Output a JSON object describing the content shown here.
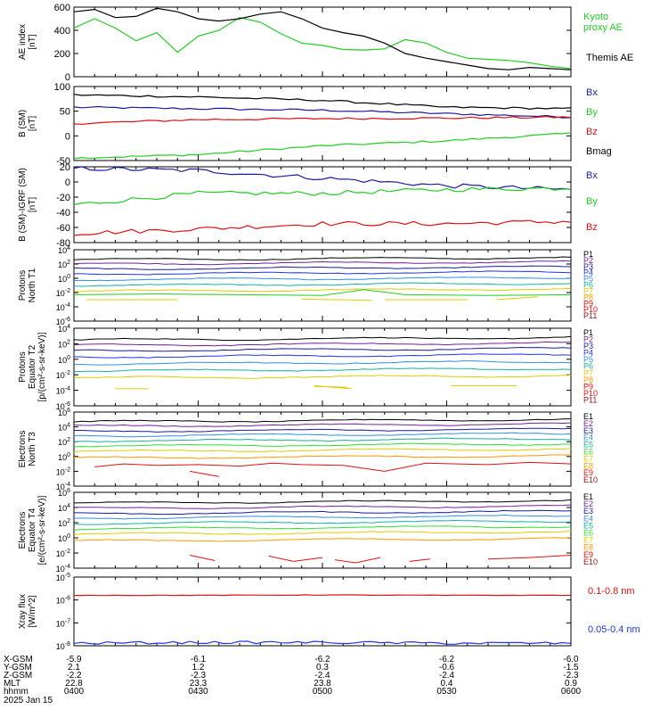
{
  "figure": {
    "footer_date": "2025 Jan 15"
  },
  "colors": {
    "black": "#000000",
    "navy": "#1b1b9c",
    "blue": "#2233ee",
    "cyan": "#22cccc",
    "teal": "#16b0a0",
    "green": "#22cc22",
    "yellow": "#ddcc00",
    "orange": "#ff9900",
    "red": "#dd1111",
    "purple": "#7a1f9a",
    "darkred": "#9c1010",
    "steelblue": "#3090e0",
    "lime": "#33dd33"
  },
  "orbit_table": {
    "row_labels": [
      "X-GSM",
      "Y-GSM",
      "Z-GSM",
      "MLT",
      "hhmm"
    ],
    "columns": [
      {
        "values": [
          "-5.9",
          "2.1",
          "-2.2",
          "22.8",
          "0400"
        ]
      },
      {
        "values": [
          "-6.1",
          "1.2",
          "-2.3",
          "23.3",
          "0430"
        ]
      },
      {
        "values": [
          "-6.2",
          "0.3",
          "-2.4",
          "23.8",
          "0500"
        ]
      },
      {
        "values": [
          "-6.2",
          "-0.6",
          "-2.4",
          "0.4",
          "0530"
        ]
      },
      {
        "values": [
          "-6.0",
          "-1.5",
          "-2.3",
          "0.9",
          "0600"
        ]
      }
    ]
  },
  "chart_data": [
    {
      "type": "line",
      "ylabel": "AE index [nT]",
      "ylim": [
        0,
        600
      ],
      "yticks": [
        "0",
        "200",
        "400",
        "600"
      ],
      "xlim": [
        "0400",
        "0600"
      ],
      "legend_placement": "right",
      "series": [
        {
          "name": "Kyoto proxy AE",
          "color": "green",
          "x": [
            "0400",
            "0405",
            "0410",
            "0415",
            "0420",
            "0425",
            "0430",
            "0435",
            "0440",
            "0445",
            "0450",
            "0455",
            "0500",
            "0505",
            "0510",
            "0515",
            "0520",
            "0525",
            "0530",
            "0535",
            "0540",
            "0545",
            "0550",
            "0555",
            "0600"
          ],
          "y": [
            420,
            500,
            420,
            310,
            380,
            210,
            350,
            400,
            510,
            470,
            370,
            290,
            270,
            235,
            230,
            240,
            320,
            290,
            210,
            160,
            150,
            140,
            120,
            90,
            70
          ]
        },
        {
          "name": "Themis AE",
          "color": "black",
          "x": [
            "0400",
            "0405",
            "0410",
            "0415",
            "0420",
            "0425",
            "0430",
            "0435",
            "0440",
            "0445",
            "0450",
            "0455",
            "0500",
            "0505",
            "0510",
            "0515",
            "0520",
            "0525",
            "0530",
            "0535",
            "0540",
            "0545",
            "0550",
            "0555",
            "0600"
          ],
          "y": [
            560,
            580,
            510,
            520,
            590,
            560,
            500,
            480,
            500,
            540,
            560,
            500,
            420,
            380,
            350,
            290,
            200,
            160,
            130,
            100,
            70,
            60,
            80,
            70,
            60
          ]
        }
      ]
    },
    {
      "type": "line",
      "ylabel": "B (SM) [nT]",
      "ylim": [
        -50,
        100
      ],
      "yticks": [
        "-50",
        "0",
        "50",
        "100"
      ],
      "series": [
        {
          "name": "Bx",
          "color": "navy",
          "x": [
            "0400",
            "0430",
            "0500",
            "0530",
            "0600"
          ],
          "y": [
            58,
            55,
            52,
            45,
            38
          ]
        },
        {
          "name": "By",
          "color": "green",
          "x": [
            "0400",
            "0430",
            "0500",
            "0530",
            "0600"
          ],
          "y": [
            -45,
            -38,
            -20,
            -10,
            5
          ]
        },
        {
          "name": "Bz",
          "color": "red",
          "x": [
            "0400",
            "0430",
            "0500",
            "0530",
            "0600"
          ],
          "y": [
            25,
            33,
            35,
            36,
            38
          ]
        },
        {
          "name": "Bmag",
          "color": "black",
          "x": [
            "0400",
            "0430",
            "0500",
            "0530",
            "0600"
          ],
          "y": [
            83,
            79,
            72,
            58,
            55
          ]
        }
      ]
    },
    {
      "type": "line",
      "ylabel": "B (SM)-IGRF (SM) [nT]",
      "ylim": [
        -80,
        20
      ],
      "yticks": [
        "-80",
        "-60",
        "-40",
        "-20",
        "0",
        "20"
      ],
      "series": [
        {
          "name": "Bx",
          "color": "navy",
          "x": [
            "0400",
            "0430",
            "0500",
            "0530",
            "0600"
          ],
          "y": [
            18,
            15,
            5,
            -5,
            -10
          ]
        },
        {
          "name": "By",
          "color": "green",
          "x": [
            "0400",
            "0430",
            "0500",
            "0530",
            "0600"
          ],
          "y": [
            -30,
            -15,
            -15,
            -10,
            -8
          ]
        },
        {
          "name": "Bz",
          "color": "red",
          "x": [
            "0400",
            "0430",
            "0500",
            "0530",
            "0600"
          ],
          "y": [
            -68,
            -62,
            -55,
            -55,
            -52
          ]
        }
      ]
    },
    {
      "type": "line",
      "ylabel": "Protons North T1",
      "yscale": "log",
      "ylim": [
        1e-06,
        10000.0
      ],
      "yticks": [
        "10-6",
        "10-4",
        "10-2",
        "100",
        "102",
        "104"
      ],
      "legend": [
        "P1",
        "P2",
        "P3",
        "P4",
        "P5",
        "P6",
        "P7",
        "P8",
        "P9",
        "P10",
        "P11"
      ]
    },
    {
      "type": "line",
      "ylabel": "Protons Equator T2 [p/(cm²-s-sr-keV)]",
      "yscale": "log",
      "ylim": [
        1e-06,
        10000.0
      ],
      "yticks": [
        "10-6",
        "10-4",
        "10-2",
        "100",
        "102",
        "104"
      ],
      "legend": [
        "P1",
        "P2",
        "P3",
        "P4",
        "P5",
        "P6",
        "P7",
        "P8",
        "P9",
        "P10",
        "P11"
      ]
    },
    {
      "type": "line",
      "ylabel": "Electrons North T3",
      "yscale": "log",
      "ylim": [
        0.0001,
        1000000.0
      ],
      "yticks": [
        "10-4",
        "10-2",
        "100",
        "102",
        "104",
        "106"
      ],
      "legend": [
        "E1",
        "E2",
        "E3",
        "E4",
        "E5",
        "E6",
        "E7",
        "E8",
        "E9",
        "E10"
      ]
    },
    {
      "type": "line",
      "ylabel": "Electrons Equator T4 [e/(cm²-s-sr-keV)]",
      "yscale": "log",
      "ylim": [
        0.0001,
        1000000.0
      ],
      "yticks": [
        "10-4",
        "10-2",
        "100",
        "102",
        "104",
        "106"
      ],
      "legend": [
        "E1",
        "E2",
        "E3",
        "E4",
        "E5",
        "E6",
        "E7",
        "E8",
        "E9",
        "E10"
      ]
    },
    {
      "type": "line",
      "ylabel": "Xray flux [W/m^2]",
      "yscale": "log",
      "ylim": [
        1e-08,
        1e-05
      ],
      "yticks": [
        "10-8",
        "10-7",
        "10-6",
        "10-5"
      ],
      "series": [
        {
          "name": "0.1-0.8 nm",
          "color": "red",
          "x": [
            "0400",
            "0430",
            "0500",
            "0530",
            "0600"
          ],
          "y": [
            1.6e-06,
            1.6e-06,
            1.65e-06,
            1.6e-06,
            1.6e-06
          ]
        },
        {
          "name": "0.05-0.4 nm",
          "color": "blue",
          "x": [
            "0400",
            "0430",
            "0500",
            "0530",
            "0600"
          ],
          "y": [
            1.3e-08,
            1.4e-08,
            1.4e-08,
            1.3e-08,
            1.3e-08
          ]
        }
      ]
    }
  ]
}
